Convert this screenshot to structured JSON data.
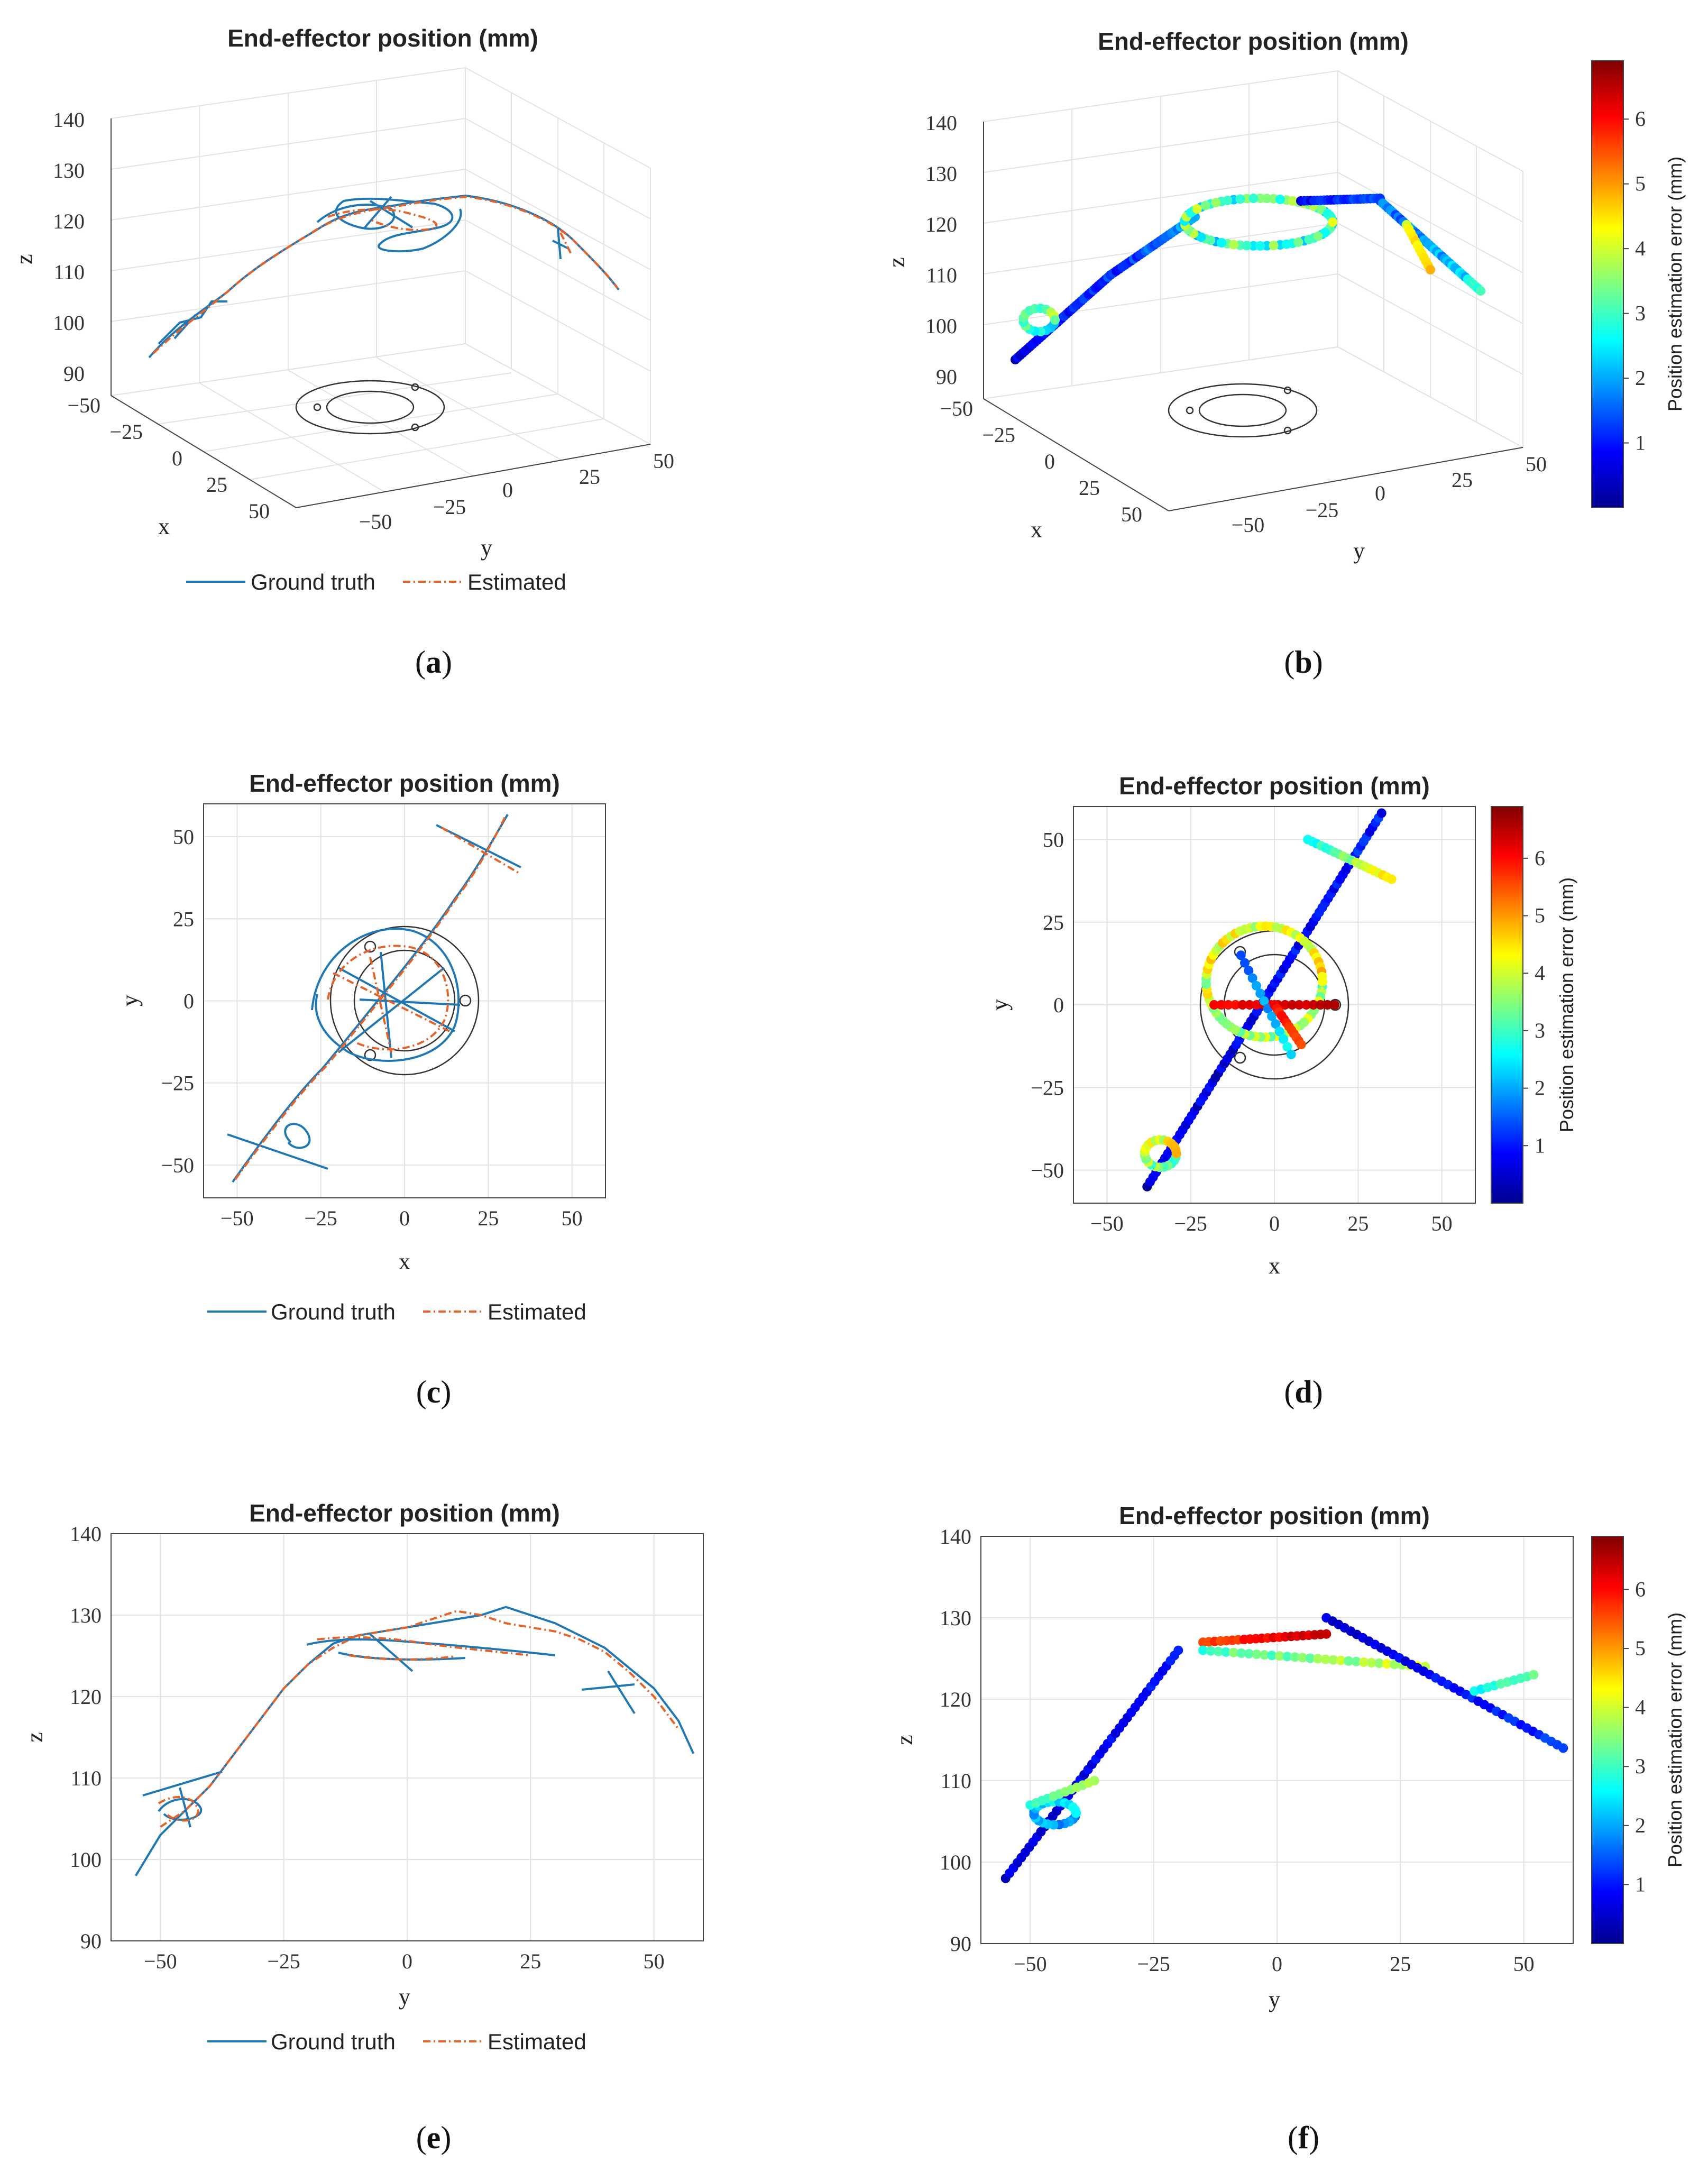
{
  "figure": {
    "panels": [
      {
        "id": "a",
        "title": "End-effector position (mm)",
        "caption_letter": "a"
      },
      {
        "id": "b",
        "title": "End-effector position (mm)",
        "caption_letter": "b"
      },
      {
        "id": "c",
        "title": "End-effector position (mm)",
        "caption_letter": "c"
      },
      {
        "id": "d",
        "title": "End-effector position (mm)",
        "caption_letter": "d"
      },
      {
        "id": "e",
        "title": "End-effector position (mm)",
        "caption_letter": "e"
      },
      {
        "id": "f",
        "title": "End-effector position (mm)",
        "caption_letter": "f"
      }
    ],
    "legend": {
      "ground_truth": "Ground truth",
      "estimated": "Estimated"
    },
    "colorbar": {
      "label": "Position estimation error (mm)",
      "ticks": [
        "1",
        "2",
        "3",
        "4",
        "5",
        "6"
      ],
      "range": [
        0,
        6.9
      ]
    },
    "colors": {
      "ground_truth": "#1f77b4",
      "estimated": "#e4632a"
    }
  },
  "chart_data": [
    {
      "panel": "a",
      "type": "line",
      "projection": "3d",
      "title": "End-effector position (mm)",
      "xlabel": "x",
      "ylabel": "y",
      "zlabel": "z",
      "xlim": [
        -50,
        50
      ],
      "ylim": [
        -50,
        50
      ],
      "zlim": [
        90,
        140
      ],
      "xticks": [
        "−50",
        "−25",
        "0",
        "25",
        "50"
      ],
      "yticks": [
        "−50",
        "−25",
        "0",
        "25",
        "50"
      ],
      "zticks": [
        "90",
        "100",
        "110",
        "120",
        "130",
        "140"
      ],
      "series": [
        {
          "name": "Ground truth"
        },
        {
          "name": "Estimated"
        }
      ],
      "grid": true,
      "legend": "bottom"
    },
    {
      "panel": "b",
      "type": "scatter",
      "projection": "3d",
      "title": "End-effector position (mm)",
      "xlabel": "x",
      "ylabel": "y",
      "zlabel": "z",
      "xlim": [
        -50,
        50
      ],
      "ylim": [
        -50,
        50
      ],
      "zlim": [
        90,
        140
      ],
      "xticks": [
        "−50",
        "−25",
        "0",
        "25",
        "50"
      ],
      "yticks": [
        "−50",
        "−25",
        "0",
        "25",
        "50"
      ],
      "zticks": [
        "90",
        "100",
        "110",
        "120",
        "130",
        "140"
      ],
      "colorbar_label": "Position estimation error (mm)",
      "color_range": [
        0,
        6.9
      ],
      "grid": true
    },
    {
      "panel": "c",
      "type": "line",
      "title": "End-effector position (mm)",
      "xlabel": "x",
      "ylabel": "y",
      "xlim": [
        -60,
        60
      ],
      "ylim": [
        -60,
        60
      ],
      "xticks": [
        "−50",
        "−25",
        "0",
        "25",
        "50"
      ],
      "yticks": [
        "−50",
        "−25",
        "0",
        "25",
        "50"
      ],
      "series": [
        {
          "name": "Ground truth"
        },
        {
          "name": "Estimated"
        }
      ],
      "grid": true,
      "legend": "bottom"
    },
    {
      "panel": "d",
      "type": "scatter",
      "title": "End-effector position (mm)",
      "xlabel": "x",
      "ylabel": "y",
      "xlim": [
        -60,
        60
      ],
      "ylim": [
        -60,
        60
      ],
      "xticks": [
        "−50",
        "−25",
        "0",
        "25",
        "50"
      ],
      "yticks": [
        "−50",
        "−25",
        "0",
        "25",
        "50"
      ],
      "colorbar_label": "Position estimation error (mm)",
      "color_range": [
        0,
        6.9
      ],
      "grid": true
    },
    {
      "panel": "e",
      "type": "line",
      "title": "End-effector position (mm)",
      "xlabel": "y",
      "ylabel": "z",
      "xlim": [
        -60,
        60
      ],
      "ylim": [
        90,
        140
      ],
      "xticks": [
        "−50",
        "−25",
        "0",
        "25",
        "50"
      ],
      "yticks": [
        "90",
        "100",
        "110",
        "120",
        "130",
        "140"
      ],
      "series": [
        {
          "name": "Ground truth",
          "x": [
            -55,
            -50,
            -45,
            -40,
            -35,
            -30,
            -25,
            -20,
            -15,
            -10,
            -5,
            0,
            5,
            10,
            15,
            20,
            25,
            30,
            35,
            40,
            45,
            50,
            55,
            58
          ],
          "values": [
            98,
            103,
            106,
            109,
            113,
            117,
            121,
            124,
            126.5,
            127.5,
            128,
            128.5,
            129,
            129.5,
            130,
            131,
            130,
            129,
            127.5,
            126,
            123.5,
            121,
            117,
            113
          ]
        },
        {
          "name": "Estimated",
          "x": [
            -50,
            -45,
            -40,
            -35,
            -30,
            -25,
            -20,
            -15,
            -10,
            -5,
            0,
            5,
            10,
            15,
            20,
            25,
            30,
            35,
            40,
            45,
            50,
            55
          ],
          "values": [
            104,
            106,
            109,
            113,
            117,
            121,
            124,
            126,
            127.5,
            128,
            128.5,
            129.5,
            130.5,
            130,
            129,
            128.5,
            128,
            127,
            125.5,
            123,
            120,
            116
          ]
        }
      ],
      "grid": true,
      "legend": "bottom"
    },
    {
      "panel": "f",
      "type": "scatter",
      "title": "End-effector position (mm)",
      "xlabel": "y",
      "ylabel": "z",
      "xlim": [
        -60,
        60
      ],
      "ylim": [
        90,
        140
      ],
      "xticks": [
        "−50",
        "−25",
        "0",
        "25",
        "50"
      ],
      "yticks": [
        "90",
        "100",
        "110",
        "120",
        "130",
        "140"
      ],
      "colorbar_label": "Position estimation error (mm)",
      "color_range": [
        0,
        6.9
      ],
      "grid": true
    }
  ]
}
